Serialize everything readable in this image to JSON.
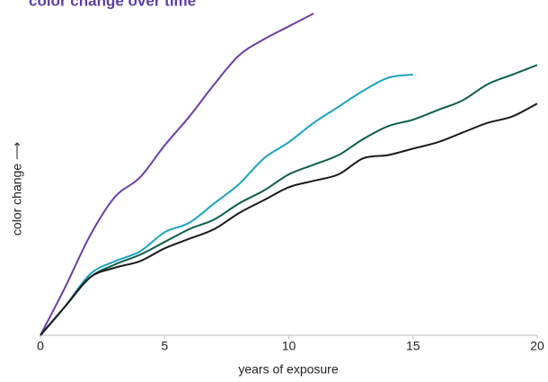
{
  "chart_data": {
    "type": "line",
    "title": "color change over time",
    "x_label": "years of exposure",
    "y_label": "color change ⟶",
    "xlim": [
      0,
      20
    ],
    "xticks": [
      0,
      5,
      10,
      15,
      20
    ],
    "ylim": [
      0,
      100
    ],
    "series": [
      {
        "color": "#6a3fa8",
        "x": [
          0,
          1,
          2,
          3,
          4,
          5,
          6,
          7,
          8,
          9,
          10,
          11
        ],
        "values": [
          0,
          15,
          31,
          43,
          49,
          59,
          68,
          78,
          87,
          92,
          96,
          100
        ]
      },
      {
        "color": "#1aa3c0",
        "x": [
          0,
          1,
          2,
          3,
          4,
          5,
          6,
          7,
          8,
          9,
          10,
          11,
          12,
          13,
          14,
          15
        ],
        "values": [
          0,
          9,
          19,
          23,
          26,
          32,
          35,
          41,
          47,
          55,
          60,
          66,
          71,
          76,
          80,
          81
        ]
      },
      {
        "color": "#0e5e4a",
        "x": [
          0,
          1,
          2,
          3,
          4,
          5,
          6,
          7,
          8,
          9,
          10,
          11,
          12,
          13,
          14,
          15,
          16,
          17,
          18,
          19,
          20
        ],
        "values": [
          0,
          9,
          18,
          22,
          25,
          29,
          33,
          36,
          41,
          45,
          50,
          53,
          56,
          61,
          65,
          67,
          70,
          73,
          78,
          81,
          84
        ]
      },
      {
        "color": "#1a1a1a",
        "x": [
          0,
          1,
          2,
          3,
          4,
          5,
          6,
          7,
          8,
          9,
          10,
          11,
          12,
          13,
          14,
          15,
          16,
          17,
          18,
          19,
          20
        ],
        "values": [
          0,
          9,
          18,
          21,
          23,
          27,
          30,
          33,
          38,
          42,
          46,
          48,
          50,
          55,
          56,
          58,
          60,
          63,
          66,
          68,
          72
        ]
      }
    ]
  }
}
